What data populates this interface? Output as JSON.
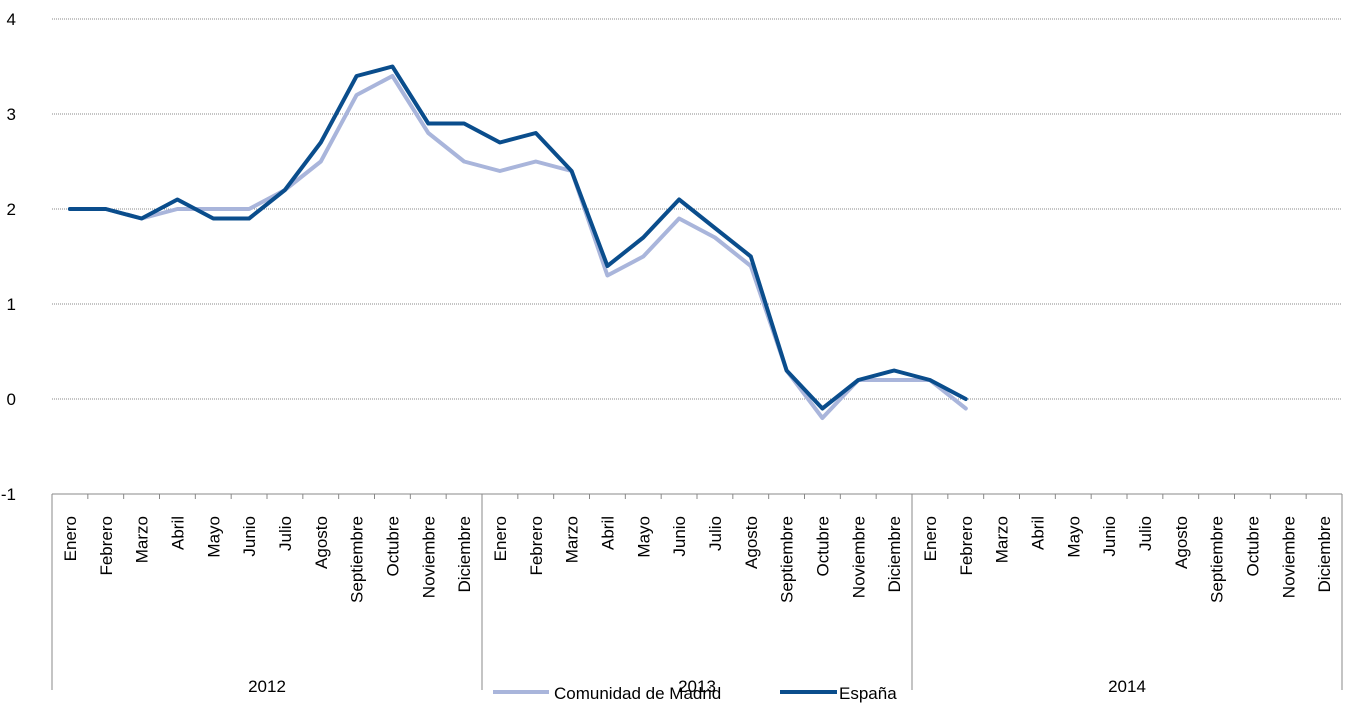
{
  "chart_data": {
    "type": "line",
    "title": "",
    "xlabel": "",
    "ylabel": "",
    "ylim": [
      -1,
      4
    ],
    "yticks": [
      "4",
      "3",
      "2",
      "1",
      "0",
      "-1"
    ],
    "ytick_values": [
      4,
      3,
      2,
      1,
      0,
      -1
    ],
    "grid": true,
    "years": [
      "2012",
      "2013",
      "2014"
    ],
    "months": [
      "Enero",
      "Febrero",
      "Marzo",
      "Abril",
      "Mayo",
      "Junio",
      "Julio",
      "Agosto",
      "Septiembre",
      "Octubre",
      "Noviembre",
      "Diciembre"
    ],
    "legend_position": "bottom",
    "series": [
      {
        "name": "Comunidad de Madrid",
        "color": "#a9b5db",
        "values": [
          2.0,
          2.0,
          1.9,
          2.0,
          2.0,
          2.0,
          2.2,
          2.5,
          3.2,
          3.4,
          2.8,
          2.5,
          2.4,
          2.5,
          2.4,
          1.3,
          1.5,
          1.9,
          1.7,
          1.4,
          0.3,
          -0.2,
          0.2,
          0.2,
          0.2,
          -0.1
        ]
      },
      {
        "name": "España",
        "color": "#0a4d8c",
        "values": [
          2.0,
          2.0,
          1.9,
          2.1,
          1.9,
          1.9,
          2.2,
          2.7,
          3.4,
          3.5,
          2.9,
          2.9,
          2.7,
          2.8,
          2.4,
          1.4,
          1.7,
          2.1,
          1.8,
          1.5,
          0.3,
          -0.1,
          0.2,
          0.3,
          0.2,
          0.0
        ]
      }
    ]
  }
}
